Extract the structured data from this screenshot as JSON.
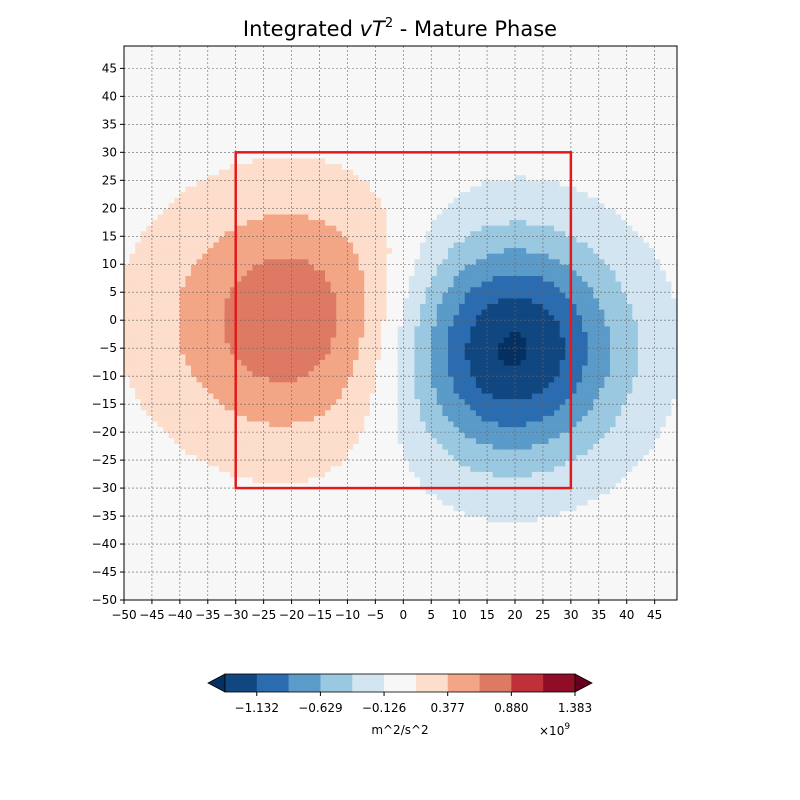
{
  "chart_data": {
    "type": "contour",
    "title": "Integrated vT² - Mature Phase",
    "title_parts": {
      "prefix": "Integrated ",
      "var_v": "v",
      "var_T": "T",
      "exponent": "2",
      "suffix": " - Mature Phase"
    },
    "xlim": [
      -50,
      49
    ],
    "ylim": [
      -50,
      49
    ],
    "x_ticks": [
      -50,
      -45,
      -40,
      -35,
      -30,
      -25,
      -20,
      -15,
      -10,
      -5,
      0,
      5,
      10,
      15,
      20,
      25,
      30,
      35,
      40,
      45
    ],
    "y_ticks": [
      -50,
      -45,
      -40,
      -35,
      -30,
      -25,
      -20,
      -15,
      -10,
      -5,
      0,
      5,
      10,
      15,
      20,
      25,
      30,
      35,
      40,
      45
    ],
    "grid": true,
    "fields": [
      {
        "name": "positive_anomaly",
        "center": [
          -20,
          0
        ],
        "amplitude_e9": 0.85,
        "sigma_x": 16,
        "sigma_y": 15
      },
      {
        "name": "negative_anomaly",
        "center": [
          19,
          -5
        ],
        "amplitude_e9": -1.45,
        "sigma_x": 14,
        "sigma_y": 14
      }
    ],
    "highlight_box": {
      "x": [
        -30,
        30
      ],
      "y": [
        -30,
        30
      ],
      "color": "#e31a1c"
    },
    "colorbar": {
      "label": "m^2/s^2",
      "scale_label": "×10",
      "scale_exponent": "9",
      "tick_values": [
        "−1.132",
        "−0.629",
        "−0.126",
        "0.377",
        "0.880",
        "1.383"
      ],
      "levels_e9": [
        -1.383,
        -1.132,
        -0.88,
        -0.629,
        -0.377,
        -0.126,
        0.126,
        0.377,
        0.629,
        0.88,
        1.132,
        1.383
      ],
      "colors": [
        "#053061",
        "#114781",
        "#2b6cb0",
        "#5a9bc9",
        "#9ac8e0",
        "#d2e5f0",
        "#f7f7f7",
        "#fdddcb",
        "#f3a685",
        "#de7a63",
        "#bf3038",
        "#8f0d26",
        "#67001f"
      ]
    }
  }
}
